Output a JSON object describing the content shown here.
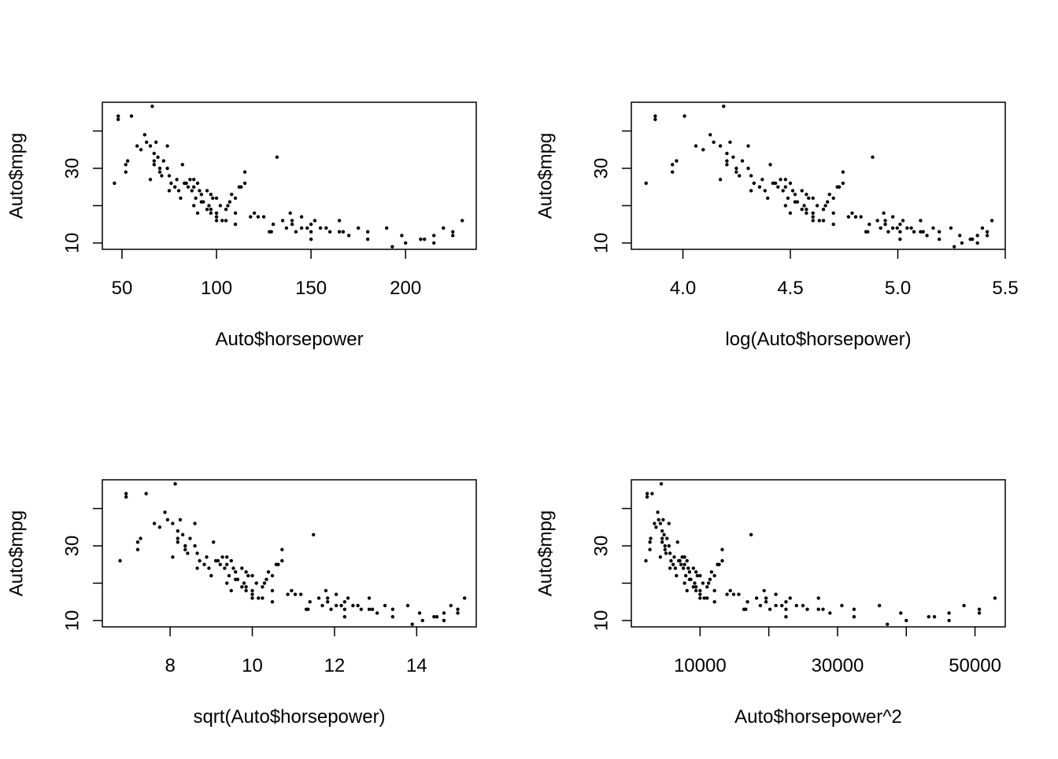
{
  "chart_data": [
    {
      "type": "scatter",
      "title": "",
      "xlabel": "Auto$horsepower",
      "ylabel": "Auto$mpg",
      "xlim": [
        39.6,
        237.4
      ],
      "ylim": [
        8.3,
        47.7
      ],
      "x_ticks": [
        "50",
        "100",
        "150",
        "200"
      ],
      "x_tick_values": [
        50,
        100,
        150,
        200
      ],
      "y_ticks": [
        "10",
        "30"
      ],
      "y_tick_values": [
        10,
        20,
        30,
        40
      ],
      "grid": false,
      "x": [
        46,
        48,
        48,
        52,
        52,
        53,
        55,
        58,
        60,
        62,
        63,
        65,
        65,
        66,
        67,
        67,
        68,
        69,
        70,
        70,
        72,
        74,
        75,
        75,
        76,
        78,
        79,
        80,
        81,
        82,
        84,
        85,
        86,
        87,
        88,
        88,
        89,
        90,
        90,
        91,
        92,
        93,
        95,
        95,
        96,
        97,
        97,
        98,
        100,
        100,
        100,
        100,
        102,
        105,
        105,
        106,
        108,
        110,
        110,
        110,
        112,
        115,
        115,
        120,
        125,
        129,
        130,
        132,
        135,
        137,
        139,
        140,
        142,
        145,
        145,
        148,
        150,
        150,
        152,
        155,
        158,
        160,
        165,
        165,
        167,
        170,
        175,
        180,
        180,
        190,
        193,
        198,
        200,
        208,
        210,
        215,
        215,
        220,
        225,
        225,
        230,
        67,
        71,
        74,
        83,
        88,
        92,
        97,
        103,
        107,
        113,
        118,
        122,
        128,
        140,
        150
      ],
      "y": [
        26,
        43.1,
        44,
        29,
        31,
        32,
        44,
        36,
        35,
        39,
        37,
        36,
        27,
        46.6,
        32,
        31,
        37,
        33,
        30,
        29,
        32,
        30,
        28,
        24,
        26,
        25,
        27,
        24,
        22,
        31,
        26,
        25,
        27,
        24,
        20,
        25,
        22,
        26,
        18,
        24,
        23,
        21,
        19,
        24,
        20,
        23,
        18,
        22,
        22,
        18,
        16,
        17,
        20,
        19,
        16,
        20,
        23,
        22,
        18,
        15,
        25,
        26,
        29,
        18,
        17,
        13,
        15,
        33,
        16,
        14,
        18,
        15,
        13,
        14,
        17,
        14,
        13,
        15,
        16,
        14,
        14,
        13,
        13,
        16,
        13,
        12,
        14,
        13,
        11,
        14,
        9,
        12,
        10,
        11,
        11,
        12,
        10,
        14,
        13,
        12,
        16,
        34,
        28,
        36,
        26,
        27,
        21,
        19,
        16,
        21,
        25,
        17,
        17,
        13,
        16,
        11
      ]
    },
    {
      "type": "scatter",
      "title": "",
      "xlabel": "log(Auto$horsepower)",
      "ylabel": "Auto$mpg",
      "xlim": [
        3.76,
        5.5
      ],
      "ylim": [
        8.3,
        47.7
      ],
      "x_ticks": [
        "4.0",
        "4.5",
        "5.0",
        "5.5"
      ],
      "x_tick_values": [
        4.0,
        4.5,
        5.0,
        5.5
      ],
      "y_ticks": [
        "10",
        "30"
      ],
      "y_tick_values": [
        10,
        20,
        30,
        40
      ],
      "grid": false,
      "transform": "log",
      "x_source": 0
    },
    {
      "type": "scatter",
      "title": "",
      "xlabel": "sqrt(Auto$horsepower)",
      "ylabel": "Auto$mpg",
      "xlim": [
        6.35,
        15.45
      ],
      "ylim": [
        8.3,
        47.7
      ],
      "x_ticks": [
        "8",
        "10",
        "12",
        "14"
      ],
      "x_tick_values": [
        8,
        10,
        12,
        14
      ],
      "y_ticks": [
        "10",
        "30"
      ],
      "y_tick_values": [
        10,
        20,
        30,
        40
      ],
      "grid": false,
      "transform": "sqrt",
      "x_source": 0
    },
    {
      "type": "scatter",
      "title": "",
      "xlabel": "Auto$horsepower^2",
      "ylabel": "Auto$mpg",
      "xlim": [
        0,
        54400
      ],
      "ylim": [
        8.3,
        47.7
      ],
      "x_ticks": [
        "10000",
        "30000",
        "50000"
      ],
      "x_tick_values": [
        10000,
        30000,
        50000
      ],
      "x_minor_tick_values": [
        20000,
        40000
      ],
      "y_ticks": [
        "10",
        "30"
      ],
      "y_tick_values": [
        10,
        20,
        30,
        40
      ],
      "grid": false,
      "transform": "square",
      "x_source": 0
    }
  ],
  "colors": {
    "points": "#000000",
    "axes": "#000000",
    "background": "#ffffff"
  }
}
